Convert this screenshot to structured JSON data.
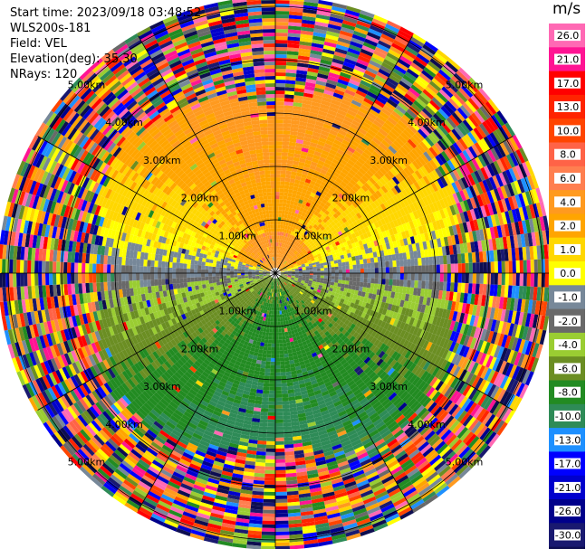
{
  "info": {
    "start_time": "Start time: 2023/09/18 03:48:52",
    "instrument": "WLS200s-181",
    "field": "Field: VEL",
    "elevation": "Elevation(deg): 35.30",
    "nrays": "NRays: 120"
  },
  "chart_data": {
    "type": "heatmap",
    "projection": "polar PPI",
    "field": "VEL",
    "units": "m/s",
    "nrays": 120,
    "range_rings_km": [
      1,
      2,
      3,
      4,
      5
    ],
    "range_ring_labels": [
      "1.00km",
      "2.00km",
      "3.00km",
      "4.00km",
      "5.00km"
    ],
    "azimuth_spokes_deg": [
      0,
      30,
      60,
      90,
      120,
      150,
      180,
      210,
      240,
      270,
      300,
      330
    ],
    "colorbar": {
      "unit_label": "m/s",
      "tick_labels": [
        "26.0",
        "21.0",
        "17.0",
        "13.0",
        "10.0",
        "8.0",
        "6.0",
        "4.0",
        "2.0",
        "1.0",
        "0.0",
        "-1.0",
        "-2.0",
        "-4.0",
        "-6.0",
        "-8.0",
        "-10.0",
        "-13.0",
        "-17.0",
        "-21.0",
        "-26.0",
        "-30.0"
      ],
      "colors": [
        "#ff69b4",
        "#ff1493",
        "#ff0000",
        "#ff2400",
        "#ff4500",
        "#ff6347",
        "#ff7f50",
        "#ff9a1f",
        "#ffa500",
        "#ffd700",
        "#ffff00",
        "#778899",
        "#696969",
        "#9acd32",
        "#6b8e23",
        "#228b22",
        "#2e8b57",
        "#1e90ff",
        "#0000ff",
        "#0000cd",
        "#00008b",
        "#191970",
        "#0d0d50"
      ]
    }
  }
}
